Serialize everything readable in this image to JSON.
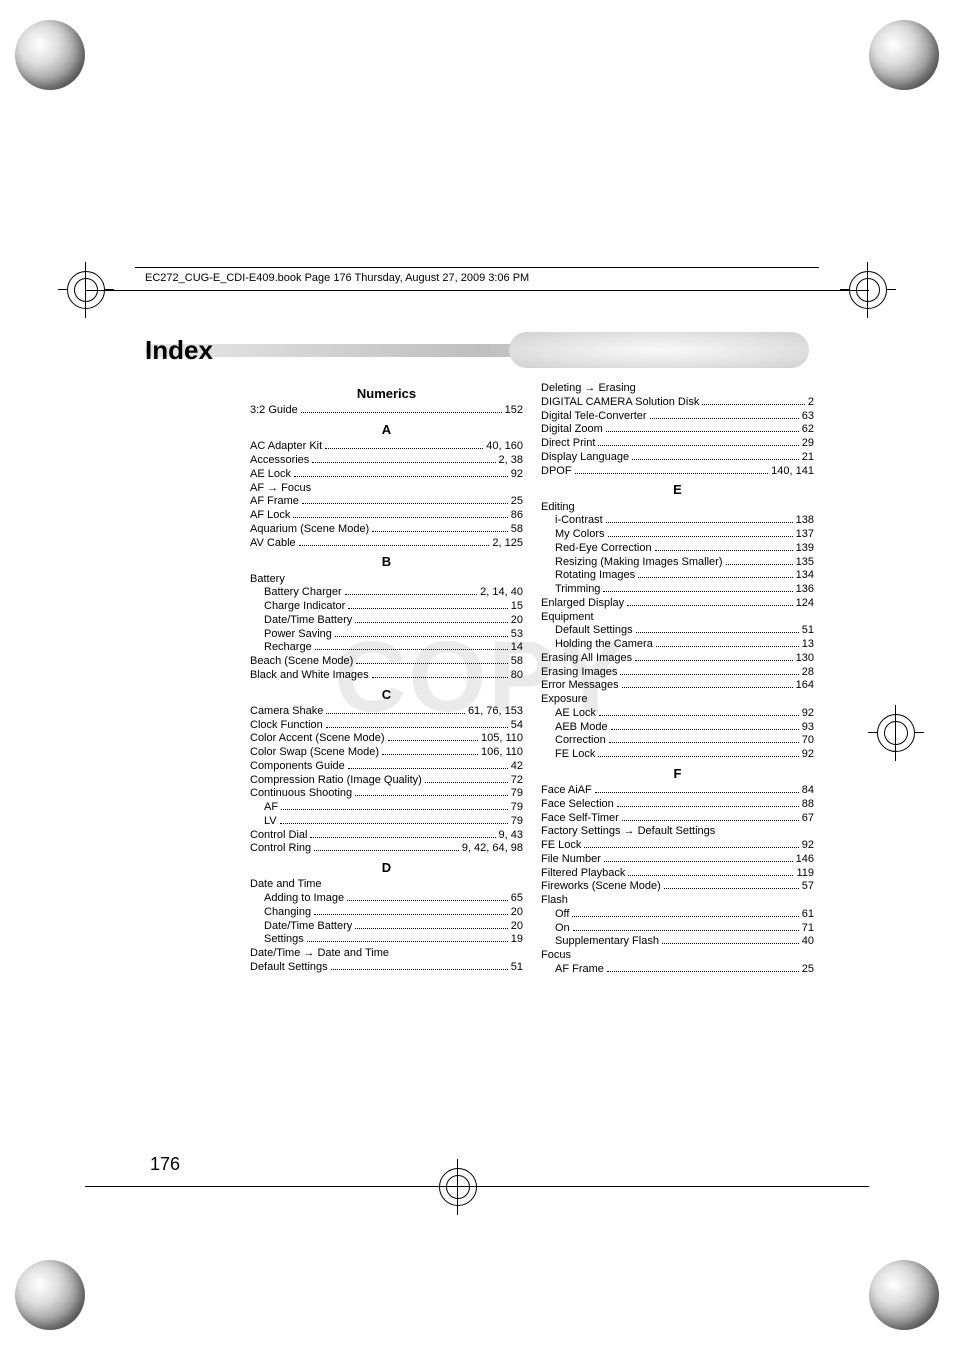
{
  "header": "EC272_CUG-E_CDI-E409.book  Page 176  Thursday, August 27, 2009  3:06 PM",
  "title": "Index",
  "watermark": "COPY",
  "pageNumber": "176",
  "left": [
    {
      "type": "head",
      "text": "Numerics"
    },
    {
      "type": "entry",
      "label": "3:2 Guide",
      "pages": "152"
    },
    {
      "type": "head",
      "text": "A"
    },
    {
      "type": "entry",
      "label": "AC Adapter Kit",
      "pages": "40, 160"
    },
    {
      "type": "entry",
      "label": "Accessories",
      "pages": "2, 38"
    },
    {
      "type": "entry",
      "label": "AE Lock",
      "pages": "92"
    },
    {
      "type": "entry",
      "label": "AF → Focus",
      "pages": "",
      "nodots": true
    },
    {
      "type": "entry",
      "label": "AF Frame",
      "pages": "25"
    },
    {
      "type": "entry",
      "label": "AF Lock",
      "pages": "86"
    },
    {
      "type": "entry",
      "label": "Aquarium (Scene Mode)",
      "pages": "58"
    },
    {
      "type": "entry",
      "label": "AV Cable",
      "pages": "2, 125"
    },
    {
      "type": "head",
      "text": "B"
    },
    {
      "type": "entry",
      "label": "Battery",
      "pages": "",
      "nodots": true
    },
    {
      "type": "entry",
      "label": "Battery Charger",
      "pages": "2, 14, 40",
      "indent": true
    },
    {
      "type": "entry",
      "label": "Charge Indicator",
      "pages": "15",
      "indent": true
    },
    {
      "type": "entry",
      "label": "Date/Time Battery",
      "pages": "20",
      "indent": true
    },
    {
      "type": "entry",
      "label": "Power Saving",
      "pages": "53",
      "indent": true
    },
    {
      "type": "entry",
      "label": "Recharge",
      "pages": "14",
      "indent": true
    },
    {
      "type": "entry",
      "label": "Beach (Scene Mode)",
      "pages": "58"
    },
    {
      "type": "entry",
      "label": "Black and White Images",
      "pages": "80"
    },
    {
      "type": "head",
      "text": "C"
    },
    {
      "type": "entry",
      "label": "Camera Shake",
      "pages": "61, 76, 153"
    },
    {
      "type": "entry",
      "label": "Clock Function",
      "pages": "54"
    },
    {
      "type": "entry",
      "label": "Color Accent (Scene Mode)",
      "pages": "105, 110"
    },
    {
      "type": "entry",
      "label": "Color Swap (Scene Mode)",
      "pages": "106, 110"
    },
    {
      "type": "entry",
      "label": "Components Guide",
      "pages": "42"
    },
    {
      "type": "entry",
      "label": "Compression Ratio (Image Quality)",
      "pages": "72"
    },
    {
      "type": "entry",
      "label": "Continuous Shooting",
      "pages": "79"
    },
    {
      "type": "entry",
      "label": "AF",
      "pages": "79",
      "indent": true
    },
    {
      "type": "entry",
      "label": "LV",
      "pages": "79",
      "indent": true
    },
    {
      "type": "entry",
      "label": "Control Dial",
      "pages": "9, 43"
    },
    {
      "type": "entry",
      "label": "Control Ring",
      "pages": "9, 42, 64, 98"
    },
    {
      "type": "head",
      "text": "D"
    },
    {
      "type": "entry",
      "label": "Date and Time",
      "pages": "",
      "nodots": true
    },
    {
      "type": "entry",
      "label": "Adding to Image",
      "pages": "65",
      "indent": true
    },
    {
      "type": "entry",
      "label": "Changing",
      "pages": "20",
      "indent": true
    },
    {
      "type": "entry",
      "label": "Date/Time Battery",
      "pages": "20",
      "indent": true
    },
    {
      "type": "entry",
      "label": "Settings",
      "pages": "19",
      "indent": true
    },
    {
      "type": "entry",
      "label": "Date/Time → Date and Time",
      "pages": "",
      "nodots": true
    },
    {
      "type": "entry",
      "label": "Default Settings",
      "pages": "51"
    }
  ],
  "right": [
    {
      "type": "entry",
      "label": "Deleting → Erasing",
      "pages": "",
      "nodots": true
    },
    {
      "type": "entry",
      "label": "DIGITAL CAMERA Solution Disk",
      "pages": "2"
    },
    {
      "type": "entry",
      "label": "Digital Tele-Converter",
      "pages": "63"
    },
    {
      "type": "entry",
      "label": "Digital Zoom",
      "pages": "62"
    },
    {
      "type": "entry",
      "label": "Direct Print",
      "pages": "29"
    },
    {
      "type": "entry",
      "label": "Display Language",
      "pages": "21"
    },
    {
      "type": "entry",
      "label": "DPOF",
      "pages": "140, 141"
    },
    {
      "type": "head",
      "text": "E"
    },
    {
      "type": "entry",
      "label": "Editing",
      "pages": "",
      "nodots": true
    },
    {
      "type": "entry",
      "label": "i-Contrast",
      "pages": "138",
      "indent": true
    },
    {
      "type": "entry",
      "label": "My Colors",
      "pages": "137",
      "indent": true
    },
    {
      "type": "entry",
      "label": "Red-Eye Correction",
      "pages": "139",
      "indent": true
    },
    {
      "type": "entry",
      "label": "Resizing (Making Images Smaller)",
      "pages": "135",
      "indent": true
    },
    {
      "type": "entry",
      "label": "Rotating Images",
      "pages": "134",
      "indent": true
    },
    {
      "type": "entry",
      "label": "Trimming",
      "pages": "136",
      "indent": true
    },
    {
      "type": "entry",
      "label": "Enlarged Display",
      "pages": "124"
    },
    {
      "type": "entry",
      "label": "Equipment",
      "pages": "",
      "nodots": true
    },
    {
      "type": "entry",
      "label": "Default Settings",
      "pages": "51",
      "indent": true
    },
    {
      "type": "entry",
      "label": "Holding the Camera",
      "pages": "13",
      "indent": true
    },
    {
      "type": "entry",
      "label": "Erasing All Images",
      "pages": "130"
    },
    {
      "type": "entry",
      "label": "Erasing Images",
      "pages": "28"
    },
    {
      "type": "entry",
      "label": "Error Messages",
      "pages": "164"
    },
    {
      "type": "entry",
      "label": "Exposure",
      "pages": "",
      "nodots": true
    },
    {
      "type": "entry",
      "label": "AE Lock",
      "pages": "92",
      "indent": true
    },
    {
      "type": "entry",
      "label": "AEB Mode",
      "pages": "93",
      "indent": true
    },
    {
      "type": "entry",
      "label": "Correction",
      "pages": "70",
      "indent": true
    },
    {
      "type": "entry",
      "label": "FE Lock",
      "pages": "92",
      "indent": true
    },
    {
      "type": "head",
      "text": "F"
    },
    {
      "type": "entry",
      "label": "Face AiAF",
      "pages": "84"
    },
    {
      "type": "entry",
      "label": "Face Selection",
      "pages": "88"
    },
    {
      "type": "entry",
      "label": "Face Self-Timer",
      "pages": "67"
    },
    {
      "type": "entry",
      "label": "Factory Settings → Default Settings",
      "pages": "",
      "nodots": true
    },
    {
      "type": "entry",
      "label": "FE Lock",
      "pages": "92"
    },
    {
      "type": "entry",
      "label": "File Number",
      "pages": "146"
    },
    {
      "type": "entry",
      "label": "Filtered Playback",
      "pages": "119"
    },
    {
      "type": "entry",
      "label": "Fireworks (Scene Mode)",
      "pages": "57"
    },
    {
      "type": "entry",
      "label": "Flash",
      "pages": "",
      "nodots": true
    },
    {
      "type": "entry",
      "label": "Off",
      "pages": "61",
      "indent": true
    },
    {
      "type": "entry",
      "label": "On",
      "pages": "71",
      "indent": true
    },
    {
      "type": "entry",
      "label": "Supplementary Flash",
      "pages": "40",
      "indent": true
    },
    {
      "type": "entry",
      "label": "Focus",
      "pages": "",
      "nodots": true
    },
    {
      "type": "entry",
      "label": "AF Frame",
      "pages": "25",
      "indent": true
    }
  ]
}
